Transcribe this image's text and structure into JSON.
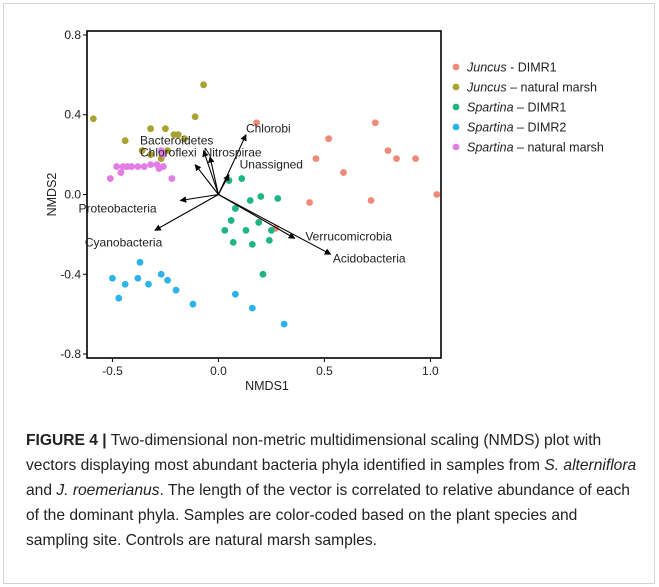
{
  "chart_data": {
    "type": "scatter",
    "xlabel": "NMDS1",
    "ylabel": "NMDS2",
    "xlim": [
      -0.62,
      1.05
    ],
    "ylim": [
      -0.82,
      0.82
    ],
    "xticks": [
      -0.5,
      0.0,
      0.5,
      1.0
    ],
    "xtick_labels": [
      "-0.5",
      "0.0",
      "0.5",
      "1.0"
    ],
    "yticks": [
      0.8,
      0.4,
      0.0,
      -0.4,
      -0.8
    ],
    "ytick_labels": [
      "0.8",
      "0.4",
      "0.0",
      "-0.4",
      "-0.8"
    ],
    "grid": false,
    "legend_position": "right",
    "series": [
      {
        "name_italic": "Juncus",
        "name_rest": " - DIMR1",
        "color": "#F08A78",
        "x": [
          0.18,
          0.52,
          0.74,
          0.8,
          0.46,
          0.59,
          0.84,
          0.93,
          0.43,
          0.72,
          1.03,
          0.27
        ],
        "y": [
          0.36,
          0.28,
          0.36,
          0.22,
          0.18,
          0.11,
          0.18,
          0.18,
          -0.04,
          -0.03,
          0.0,
          -0.17
        ]
      },
      {
        "name_italic": "Juncus",
        "name_rest": " – natural marsh",
        "color": "#A9A230",
        "x": [
          -0.59,
          -0.07,
          -0.11,
          -0.44,
          -0.32,
          -0.25,
          -0.21,
          -0.19,
          -0.36,
          -0.24,
          -0.32,
          -0.27,
          -0.16
        ],
        "y": [
          0.38,
          0.55,
          0.39,
          0.27,
          0.33,
          0.33,
          0.3,
          0.3,
          0.22,
          0.22,
          0.2,
          0.18,
          0.28
        ]
      },
      {
        "name_italic": "Spartina",
        "name_rest": " – DIMR1",
        "color": "#1DB584",
        "x": [
          0.05,
          0.11,
          0.15,
          0.2,
          0.28,
          0.08,
          0.06,
          0.19,
          0.03,
          0.13,
          0.25,
          0.07,
          0.16,
          0.24,
          0.21
        ],
        "y": [
          0.07,
          0.08,
          -0.03,
          -0.01,
          -0.02,
          -0.07,
          -0.13,
          -0.14,
          -0.18,
          -0.18,
          -0.18,
          -0.24,
          -0.25,
          -0.23,
          -0.4
        ]
      },
      {
        "name_italic": "Spartina",
        "name_rest": " – DIMR2",
        "color": "#2BB3EA",
        "x": [
          -0.5,
          -0.37,
          -0.38,
          -0.27,
          -0.24,
          -0.44,
          -0.33,
          -0.2,
          -0.12,
          -0.47,
          0.08,
          0.16,
          0.31
        ],
        "y": [
          -0.42,
          -0.34,
          -0.42,
          -0.4,
          -0.43,
          -0.45,
          -0.45,
          -0.48,
          -0.55,
          -0.52,
          -0.5,
          -0.57,
          -0.65
        ]
      },
      {
        "name_italic": "Spartina",
        "name_rest": " – natural marsh",
        "color": "#E47CE6",
        "x": [
          -0.48,
          -0.45,
          -0.43,
          -0.41,
          -0.38,
          -0.35,
          -0.32,
          -0.29,
          -0.26,
          -0.28,
          -0.46,
          -0.51,
          -0.22,
          -0.26,
          -0.27
        ],
        "y": [
          0.14,
          0.14,
          0.14,
          0.14,
          0.14,
          0.14,
          0.15,
          0.15,
          0.14,
          0.13,
          0.11,
          0.08,
          0.08,
          0.2,
          0.22
        ]
      }
    ],
    "vectors": [
      {
        "label": "Chlorobi",
        "x": 0.13,
        "y": 0.3,
        "label_dx": 0.0,
        "label_dy": 0.03
      },
      {
        "label": "Bacteroidetes",
        "x": -0.07,
        "y": 0.22,
        "label_dx": -0.3,
        "label_dy": 0.05
      },
      {
        "label": "Nitrospirae",
        "x": -0.04,
        "y": 0.19,
        "label_dx": -0.03,
        "label_dy": 0.02
      },
      {
        "label": "Chloroflexi",
        "x": -0.11,
        "y": 0.15,
        "label_dx": -0.26,
        "label_dy": 0.06
      },
      {
        "label": "Unassigned",
        "x": 0.05,
        "y": 0.1,
        "label_dx": 0.05,
        "label_dy": 0.05
      },
      {
        "label": "Proteobacteria",
        "x": -0.18,
        "y": -0.03,
        "label_dx": -0.48,
        "label_dy": -0.04
      },
      {
        "label": "Cyanobacteria",
        "x": -0.3,
        "y": -0.18,
        "label_dx": -0.33,
        "label_dy": -0.06
      },
      {
        "label": "Verrucomicrobia",
        "x": 0.36,
        "y": -0.22,
        "label_dx": 0.05,
        "label_dy": 0.01
      },
      {
        "label": "Acidobacteria",
        "x": 0.53,
        "y": -0.3,
        "label_dx": 0.01,
        "label_dy": -0.02
      }
    ]
  },
  "caption": {
    "label": "FIGURE 4",
    "separator": "|",
    "seg1": " Two-dimensional non-metric multidimensional scaling (NMDS) plot with vectors displaying most abundant bacteria phyla identified in samples from ",
    "species1": "S. alterniflora",
    "seg2": " and ",
    "species2": "J. roemerianus",
    "seg3": ". The length of the vector is correlated to relative abundance of each of the dominant phyla. Samples are color-coded based on the plant species and sampling site. Controls are natural marsh samples."
  },
  "colors": {
    "axis": "#000000",
    "text": "#222222",
    "caption_label": "#222222"
  }
}
